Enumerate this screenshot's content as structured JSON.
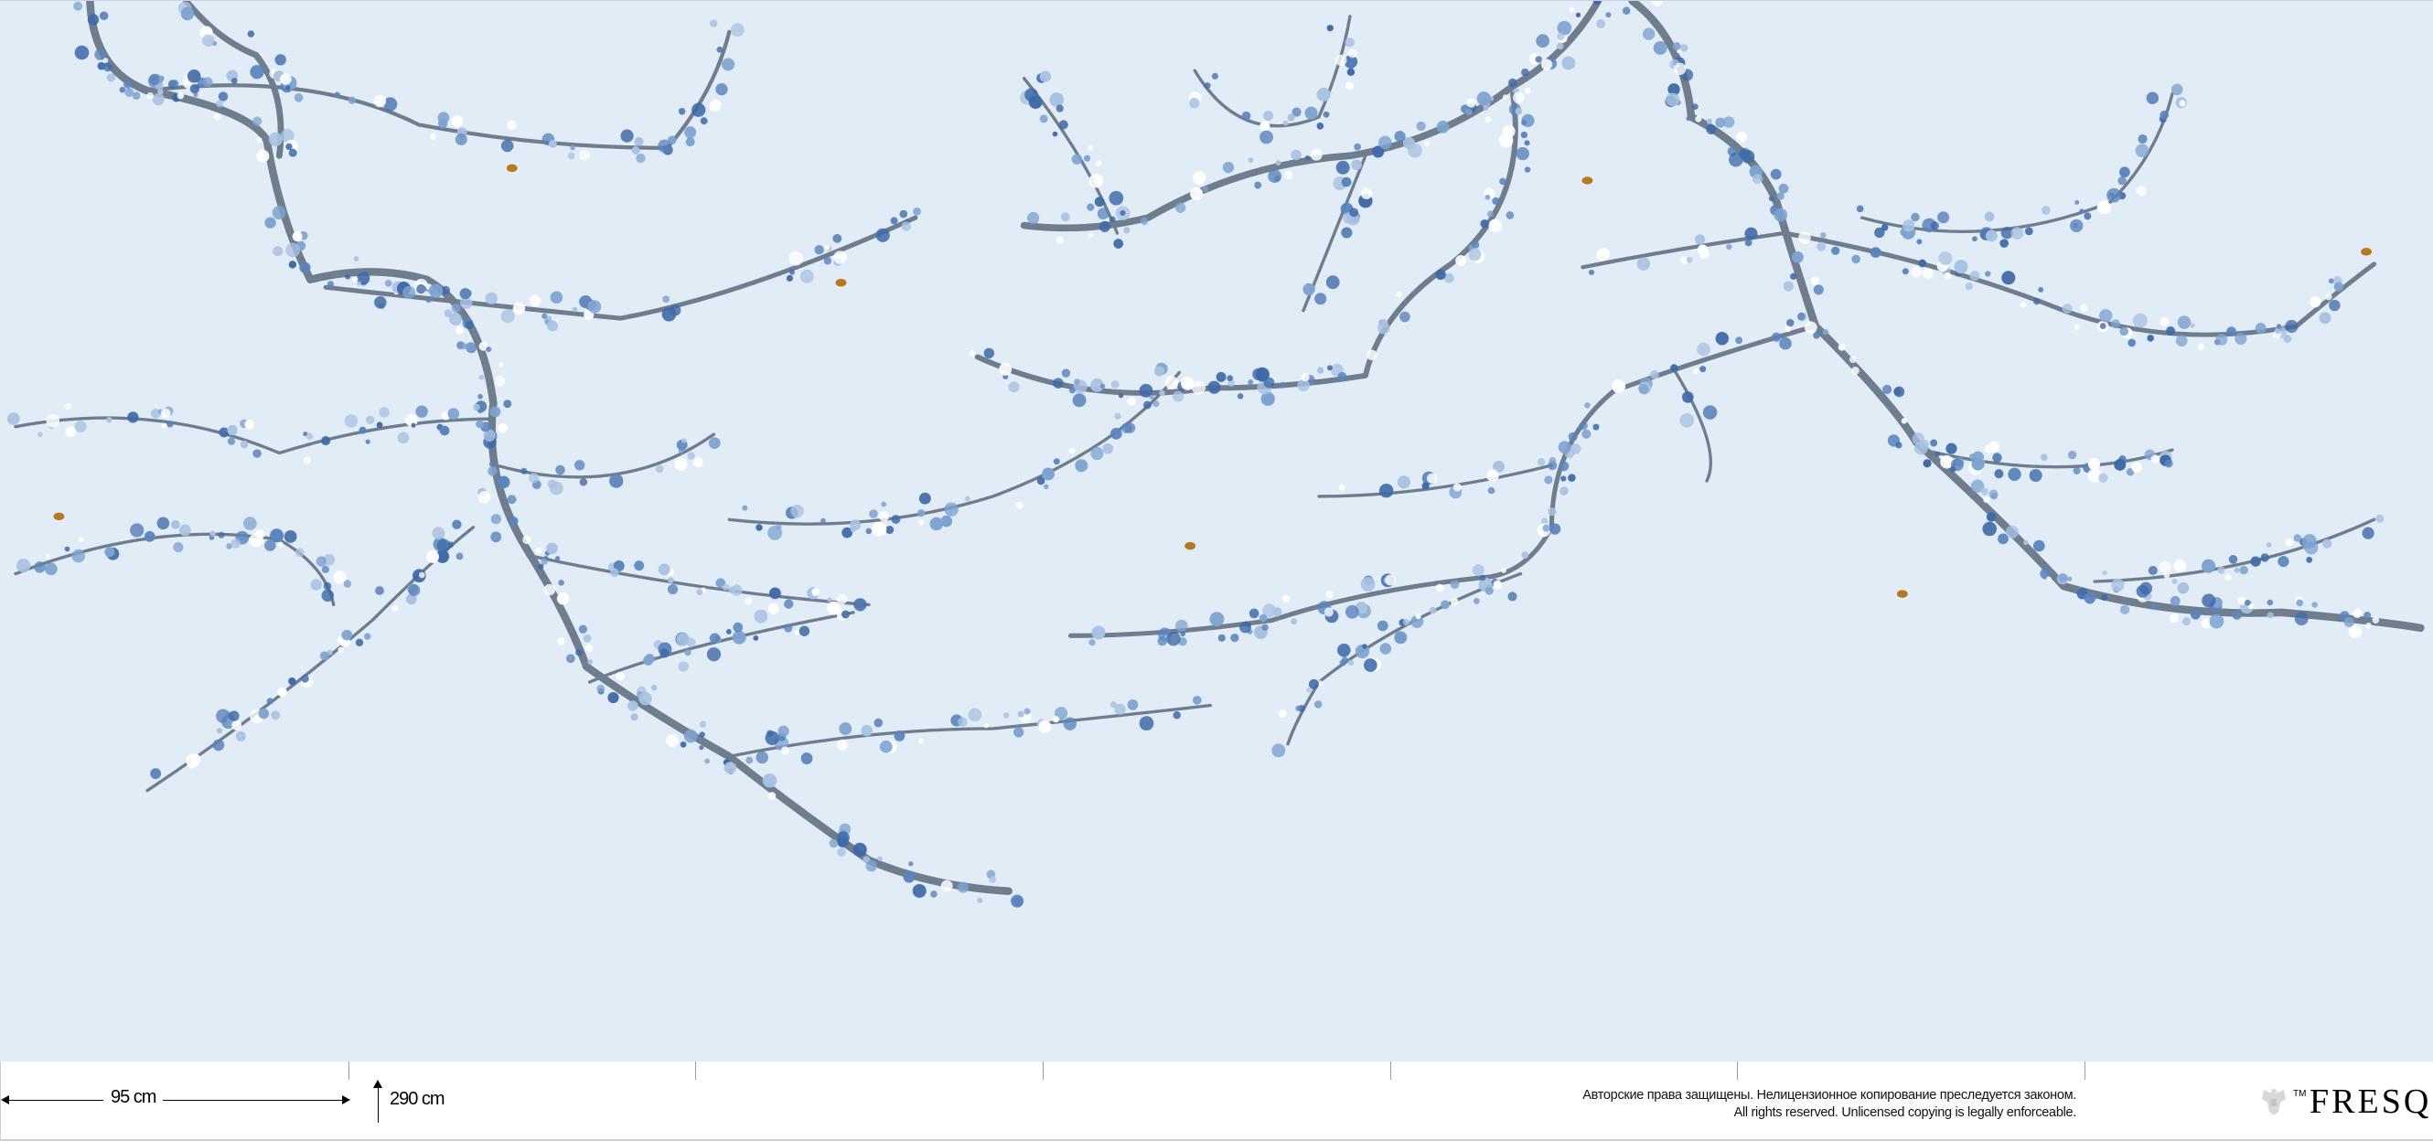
{
  "mural": {
    "background_color": "#e2ecf6",
    "branch_color": "#6f7d8e",
    "blossom_colors": [
      "#3f6aa8",
      "#5b84bd",
      "#7ea3d1",
      "#a9c2e2",
      "#ffffff"
    ],
    "accent_icon": "bee-icon"
  },
  "footer": {
    "panel_width_label": "95 cm",
    "height_label": "290 cm",
    "copyright_ru": "Авторские права защищены. Нелицензионное копирование преследуется законом.",
    "copyright_en": "All rights reserved. Unlicensed copying is legally enforceable.",
    "trademark": "TM",
    "brand": "FRESQ",
    "emblem_icon": "double-headed-eagle-icon"
  }
}
